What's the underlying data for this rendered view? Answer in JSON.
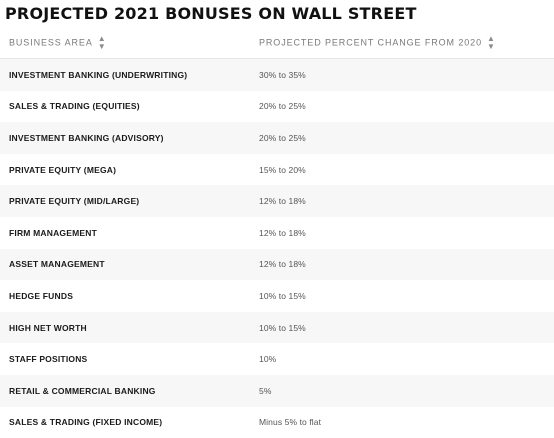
{
  "title": "PROJECTED 2021 BONUSES ON WALL STREET",
  "columns": {
    "area": "BUSINESS AREA",
    "change": "PROJECTED PERCENT CHANGE FROM 2020"
  },
  "icons": {
    "sort": "sort-icon"
  },
  "rows": [
    {
      "area": "INVESTMENT BANKING (UNDERWRITING)",
      "change": "30% to 35%"
    },
    {
      "area": "SALES & TRADING (EQUITIES)",
      "change": "20% to 25%"
    },
    {
      "area": "INVESTMENT BANKING (ADVISORY)",
      "change": "20% to 25%"
    },
    {
      "area": "PRIVATE EQUITY (MEGA)",
      "change": "15% to 20%"
    },
    {
      "area": "PRIVATE EQUITY (MID/LARGE)",
      "change": "12% to 18%"
    },
    {
      "area": "FIRM MANAGEMENT",
      "change": "12% to 18%"
    },
    {
      "area": "ASSET MANAGEMENT",
      "change": "12% to 18%"
    },
    {
      "area": "HEDGE FUNDS",
      "change": "10% to 15%"
    },
    {
      "area": "HIGH NET WORTH",
      "change": "10% to 15%"
    },
    {
      "area": "STAFF POSITIONS",
      "change": "10%"
    },
    {
      "area": "RETAIL & COMMERCIAL BANKING",
      "change": "5%"
    },
    {
      "area": "SALES & TRADING (FIXED INCOME)",
      "change": "Minus 5% to flat"
    }
  ]
}
